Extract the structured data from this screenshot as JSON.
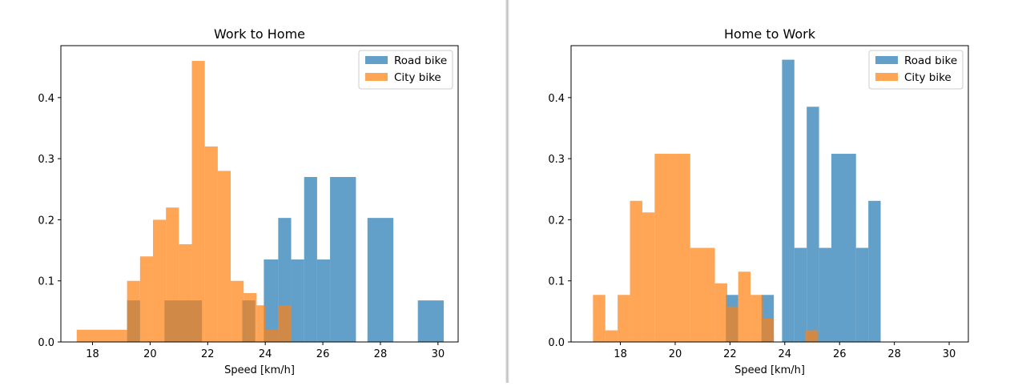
{
  "chart_data": [
    {
      "type": "bar",
      "title": "Work to Home",
      "xlabel": "Speed [km/h]",
      "ylabel": "",
      "xlim": [
        16.9,
        30.7
      ],
      "ylim": [
        0,
        0.485
      ],
      "xticks": [
        "18",
        "20",
        "22",
        "24",
        "26",
        "28",
        "30"
      ],
      "yticks": [
        "0.0",
        "0.1",
        "0.2",
        "0.3",
        "0.4"
      ],
      "grid": false,
      "legend_position": "top-right",
      "series": [
        {
          "name": "Road bike",
          "color": "#1f77b4",
          "alpha": 0.7,
          "bins": [
            {
              "x0": 19.2,
              "x1": 19.65,
              "y": 0.068
            },
            {
              "x0": 20.5,
              "x1": 21.8,
              "y": 0.068
            },
            {
              "x0": 23.2,
              "x1": 23.65,
              "y": 0.068
            },
            {
              "x0": 23.95,
              "x1": 24.45,
              "y": 0.135
            },
            {
              "x0": 24.45,
              "x1": 24.9,
              "y": 0.203
            },
            {
              "x0": 24.9,
              "x1": 25.35,
              "y": 0.135
            },
            {
              "x0": 25.35,
              "x1": 25.8,
              "y": 0.27
            },
            {
              "x0": 25.8,
              "x1": 26.25,
              "y": 0.135
            },
            {
              "x0": 26.25,
              "x1": 27.15,
              "y": 0.27
            },
            {
              "x0": 27.55,
              "x1": 28.45,
              "y": 0.203
            },
            {
              "x0": 29.3,
              "x1": 30.2,
              "y": 0.068
            }
          ]
        },
        {
          "name": "City bike",
          "color": "#ff7f0e",
          "alpha": 0.7,
          "bins": [
            {
              "x0": 17.45,
              "x1": 19.2,
              "y": 0.02
            },
            {
              "x0": 19.2,
              "x1": 19.65,
              "y": 0.1
            },
            {
              "x0": 19.65,
              "x1": 20.1,
              "y": 0.14
            },
            {
              "x0": 20.1,
              "x1": 20.55,
              "y": 0.2
            },
            {
              "x0": 20.55,
              "x1": 21.0,
              "y": 0.22
            },
            {
              "x0": 21.0,
              "x1": 21.45,
              "y": 0.16
            },
            {
              "x0": 21.45,
              "x1": 21.9,
              "y": 0.46
            },
            {
              "x0": 21.9,
              "x1": 22.35,
              "y": 0.32
            },
            {
              "x0": 22.35,
              "x1": 22.8,
              "y": 0.28
            },
            {
              "x0": 22.8,
              "x1": 23.25,
              "y": 0.1
            },
            {
              "x0": 23.25,
              "x1": 23.7,
              "y": 0.08
            },
            {
              "x0": 23.7,
              "x1": 24.0,
              "y": 0.06
            },
            {
              "x0": 24.0,
              "x1": 24.45,
              "y": 0.02
            },
            {
              "x0": 24.45,
              "x1": 24.9,
              "y": 0.06
            }
          ]
        }
      ]
    },
    {
      "type": "bar",
      "title": "Home to Work",
      "xlabel": "Speed [km/h]",
      "ylabel": "",
      "xlim": [
        16.2,
        30.7
      ],
      "ylim": [
        0,
        0.485
      ],
      "xticks": [
        "18",
        "20",
        "22",
        "24",
        "26",
        "28",
        "30"
      ],
      "yticks": [
        "0.0",
        "0.1",
        "0.2",
        "0.3",
        "0.4"
      ],
      "grid": false,
      "legend_position": "top-right",
      "series": [
        {
          "name": "Road bike",
          "color": "#1f77b4",
          "alpha": 0.7,
          "bins": [
            {
              "x0": 21.85,
              "x1": 22.3,
              "y": 0.077
            },
            {
              "x0": 23.15,
              "x1": 23.6,
              "y": 0.077
            },
            {
              "x0": 23.9,
              "x1": 24.35,
              "y": 0.462
            },
            {
              "x0": 24.35,
              "x1": 24.8,
              "y": 0.154
            },
            {
              "x0": 24.8,
              "x1": 25.25,
              "y": 0.385
            },
            {
              "x0": 25.25,
              "x1": 25.7,
              "y": 0.154
            },
            {
              "x0": 25.7,
              "x1": 26.6,
              "y": 0.308
            },
            {
              "x0": 26.6,
              "x1": 27.05,
              "y": 0.154
            },
            {
              "x0": 27.05,
              "x1": 27.5,
              "y": 0.231
            }
          ]
        },
        {
          "name": "City bike",
          "color": "#ff7f0e",
          "alpha": 0.7,
          "bins": [
            {
              "x0": 17.0,
              "x1": 17.45,
              "y": 0.077
            },
            {
              "x0": 17.45,
              "x1": 17.9,
              "y": 0.019
            },
            {
              "x0": 17.9,
              "x1": 18.35,
              "y": 0.077
            },
            {
              "x0": 18.35,
              "x1": 18.8,
              "y": 0.231
            },
            {
              "x0": 18.8,
              "x1": 19.25,
              "y": 0.212
            },
            {
              "x0": 19.25,
              "x1": 20.55,
              "y": 0.308
            },
            {
              "x0": 20.55,
              "x1": 21.45,
              "y": 0.154
            },
            {
              "x0": 21.45,
              "x1": 21.9,
              "y": 0.096
            },
            {
              "x0": 21.9,
              "x1": 22.3,
              "y": 0.058
            },
            {
              "x0": 22.3,
              "x1": 22.75,
              "y": 0.115
            },
            {
              "x0": 22.75,
              "x1": 23.2,
              "y": 0.077
            },
            {
              "x0": 23.2,
              "x1": 23.6,
              "y": 0.038
            },
            {
              "x0": 24.75,
              "x1": 25.2,
              "y": 0.019
            }
          ]
        }
      ]
    }
  ]
}
